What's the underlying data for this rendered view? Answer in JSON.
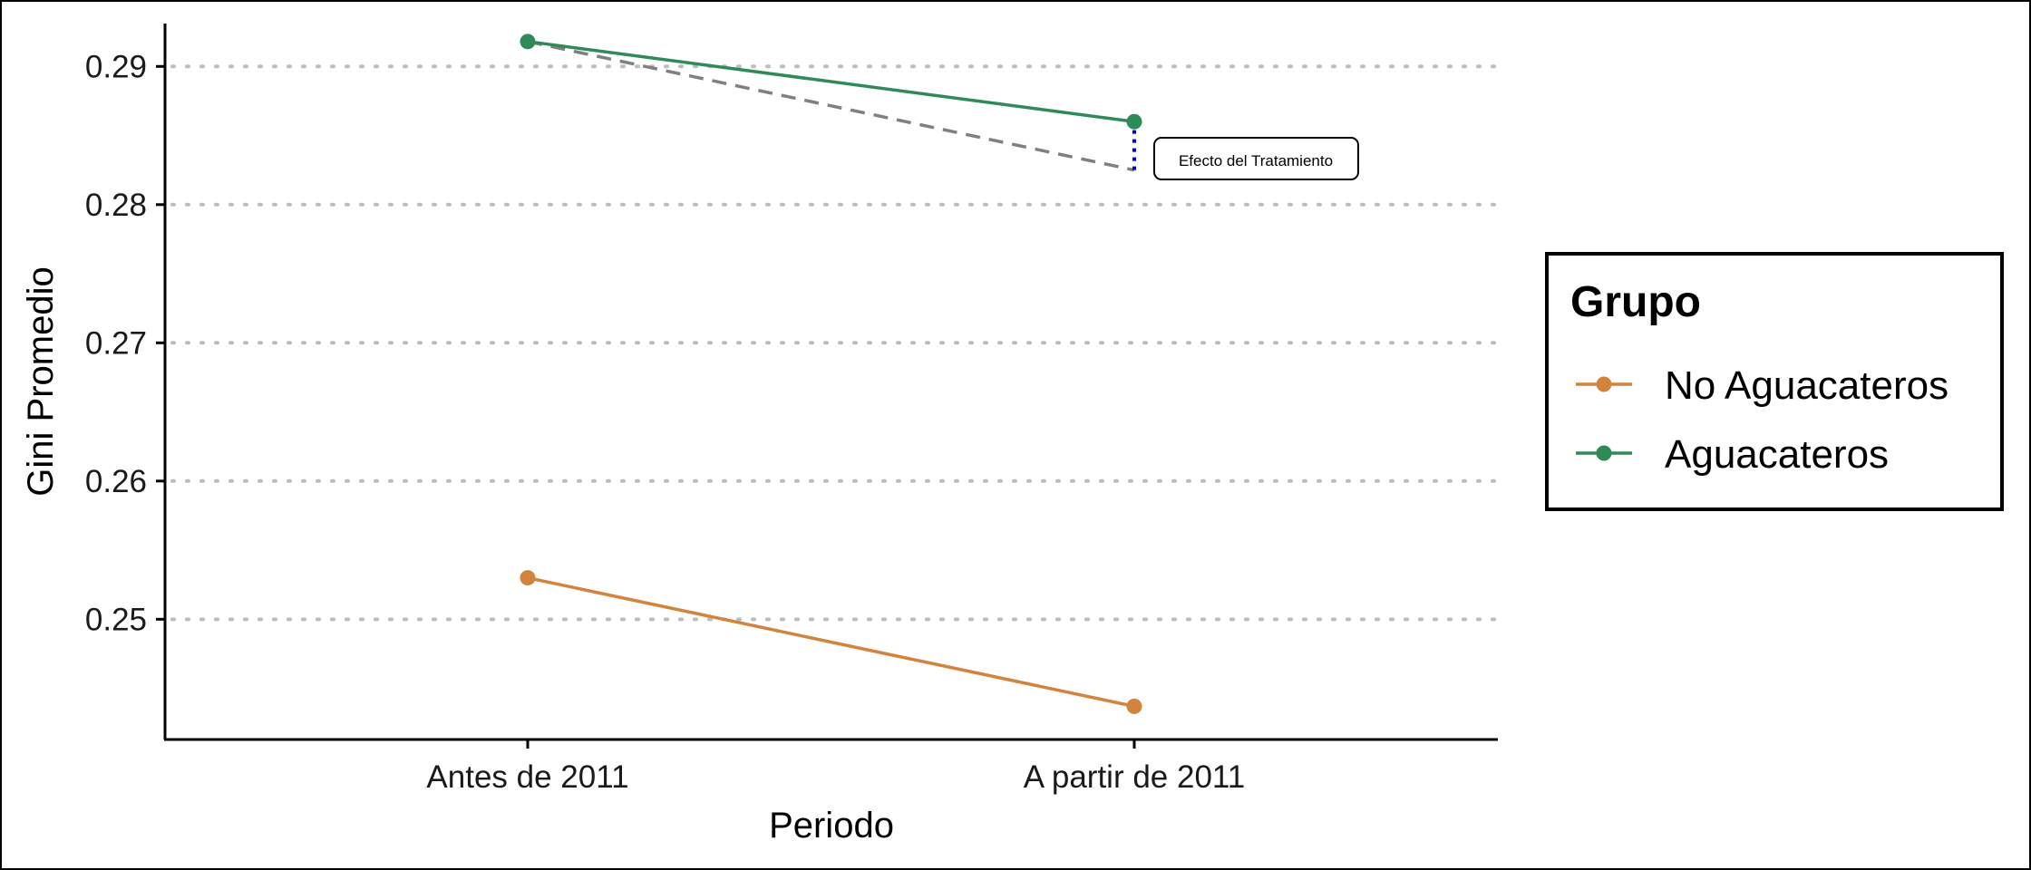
{
  "chart_data": {
    "type": "line",
    "title": "",
    "xlabel": "Periodo",
    "ylabel": "Gini Promedio",
    "categories": [
      "Antes de 2011",
      "A partir de 2011"
    ],
    "ylim": [
      0.2413,
      0.2931
    ],
    "yticks": [
      0.25,
      0.26,
      0.27,
      0.28,
      0.29
    ],
    "ytick_labels": [
      "0.25",
      "0.26",
      "0.27",
      "0.28",
      "0.29"
    ],
    "grid": "horizontal dotted",
    "series": [
      {
        "name": "No Aguacateros",
        "values": [
          0.253,
          0.2437
        ],
        "color": "#D2843D"
      },
      {
        "name": "Aguacateros",
        "values": [
          0.2918,
          0.286
        ],
        "color": "#2E8B57"
      }
    ],
    "counterfactual": {
      "values": [
        0.2918,
        0.2825
      ],
      "color": "#808080",
      "style": "dashed"
    },
    "treatment_effect": {
      "from": 0.2825,
      "to": 0.286,
      "color": "#0000CC",
      "style": "dotted"
    },
    "annotation": {
      "text": "Efecto del Tratamiento"
    },
    "legend": {
      "title": "Grupo",
      "position": "right"
    }
  }
}
